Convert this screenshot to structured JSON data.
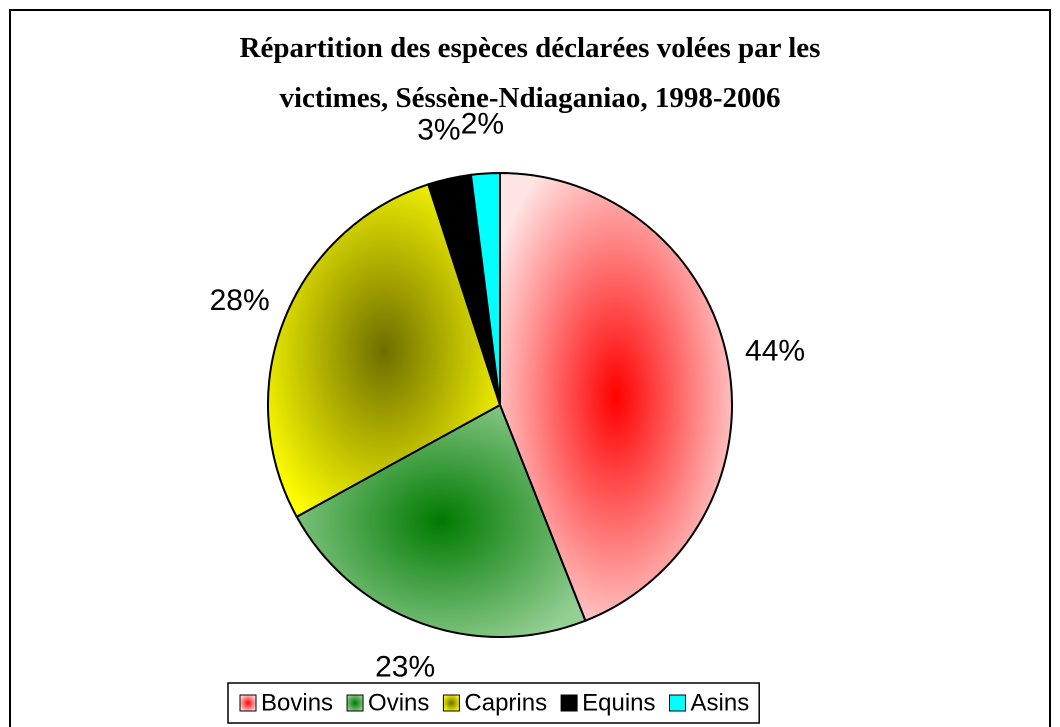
{
  "chart_data": {
    "type": "pie",
    "title": "Répartition des espèces déclarées volées par les victimes, Séssène-Ndiaganiao, 1998-2006",
    "categories": [
      "Bovins",
      "Ovins",
      "Caprins",
      "Equins",
      "Asins"
    ],
    "values": [
      44,
      23,
      28,
      3,
      2
    ],
    "value_labels": [
      "44%",
      "23%",
      "28%",
      "3%",
      "2%"
    ],
    "colors": [
      "#ff0000",
      "#007a00",
      "#6e6e00",
      "#000000",
      "#00ffff"
    ],
    "edge_colors": [
      "#ffe4e4",
      "#94cf94",
      "#ffff00",
      "#000000",
      "#00ffff"
    ],
    "legend": "bottom"
  }
}
